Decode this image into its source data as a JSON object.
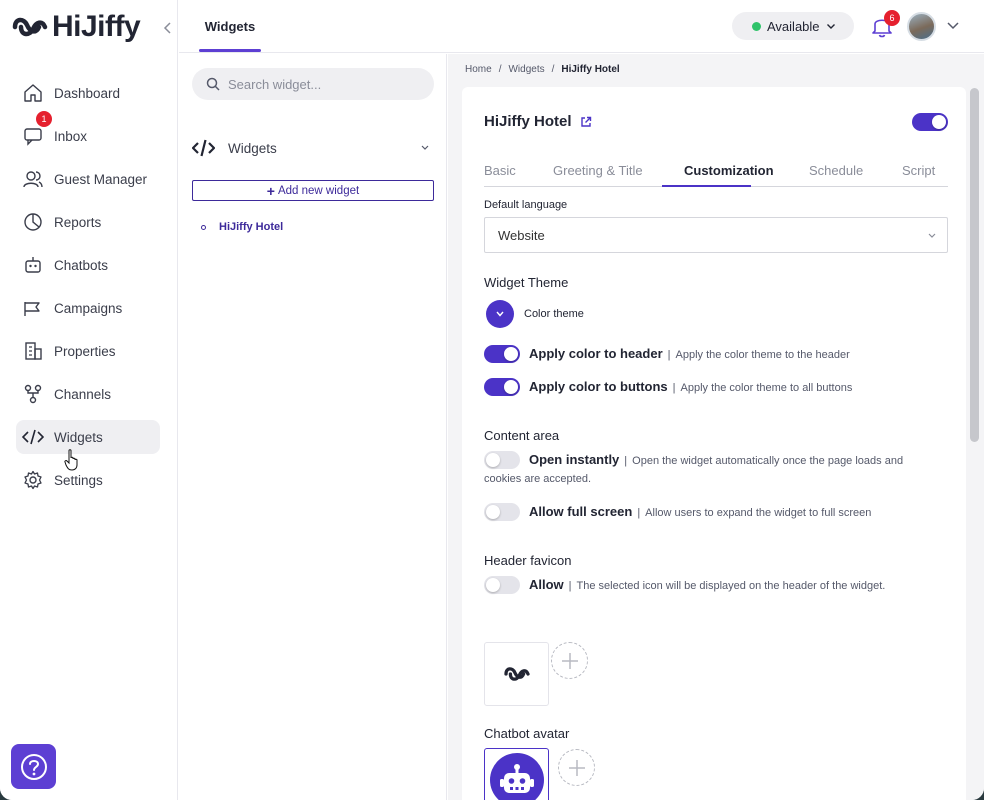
{
  "app": {
    "logo_text": "HiJiffy"
  },
  "sidebar": {
    "items": [
      {
        "label": "Dashboard",
        "icon": "home-icon"
      },
      {
        "label": "Inbox",
        "icon": "chat-icon",
        "badge": "1"
      },
      {
        "label": "Guest Manager",
        "icon": "users-icon"
      },
      {
        "label": "Reports",
        "icon": "pie-chart-icon"
      },
      {
        "label": "Chatbots",
        "icon": "robot-icon"
      },
      {
        "label": "Campaigns",
        "icon": "megaphone-icon"
      },
      {
        "label": "Properties",
        "icon": "building-icon"
      },
      {
        "label": "Channels",
        "icon": "channels-icon"
      },
      {
        "label": "Widgets",
        "icon": "code-icon",
        "active": true
      },
      {
        "label": "Settings",
        "icon": "gear-icon"
      }
    ]
  },
  "topbar": {
    "tab": "Widgets",
    "status": "Available",
    "status_color": "#2fc36a",
    "notifications": "6"
  },
  "widget_panel": {
    "search_placeholder": "Search widget...",
    "group_label": "Widgets",
    "add_button": "Add new widget",
    "items": [
      "HiJiffy Hotel"
    ]
  },
  "breadcrumb": {
    "home": "Home",
    "section": "Widgets",
    "current": "HiJiffy Hotel"
  },
  "widget": {
    "title": "HiJiffy Hotel",
    "tabs": [
      "Basic",
      "Greeting & Title",
      "Customization",
      "Schedule",
      "Script"
    ],
    "active_tab": "Customization",
    "default_language_label": "Default language",
    "default_language_value": "Website",
    "theme_title": "Widget Theme",
    "color_theme_label": "Color theme",
    "theme_color": "#4b33c7",
    "options": {
      "header": {
        "name": "Apply color to header",
        "desc": "Apply the color theme to the header"
      },
      "buttons": {
        "name": "Apply color to buttons",
        "desc": "Apply the color theme to all buttons"
      },
      "instant": {
        "name": "Open instantly",
        "desc": "Open the widget automatically once the page loads and cookies are accepted."
      },
      "fullscreen": {
        "name": "Allow full screen",
        "desc": "Allow users to expand the widget to full screen"
      },
      "favicon": {
        "name": "Allow",
        "desc": "The selected icon will be displayed on the header of the widget."
      }
    },
    "content_area_title": "Content area",
    "header_favicon_title": "Header favicon",
    "chatbot_avatar_title": "Chatbot avatar"
  }
}
